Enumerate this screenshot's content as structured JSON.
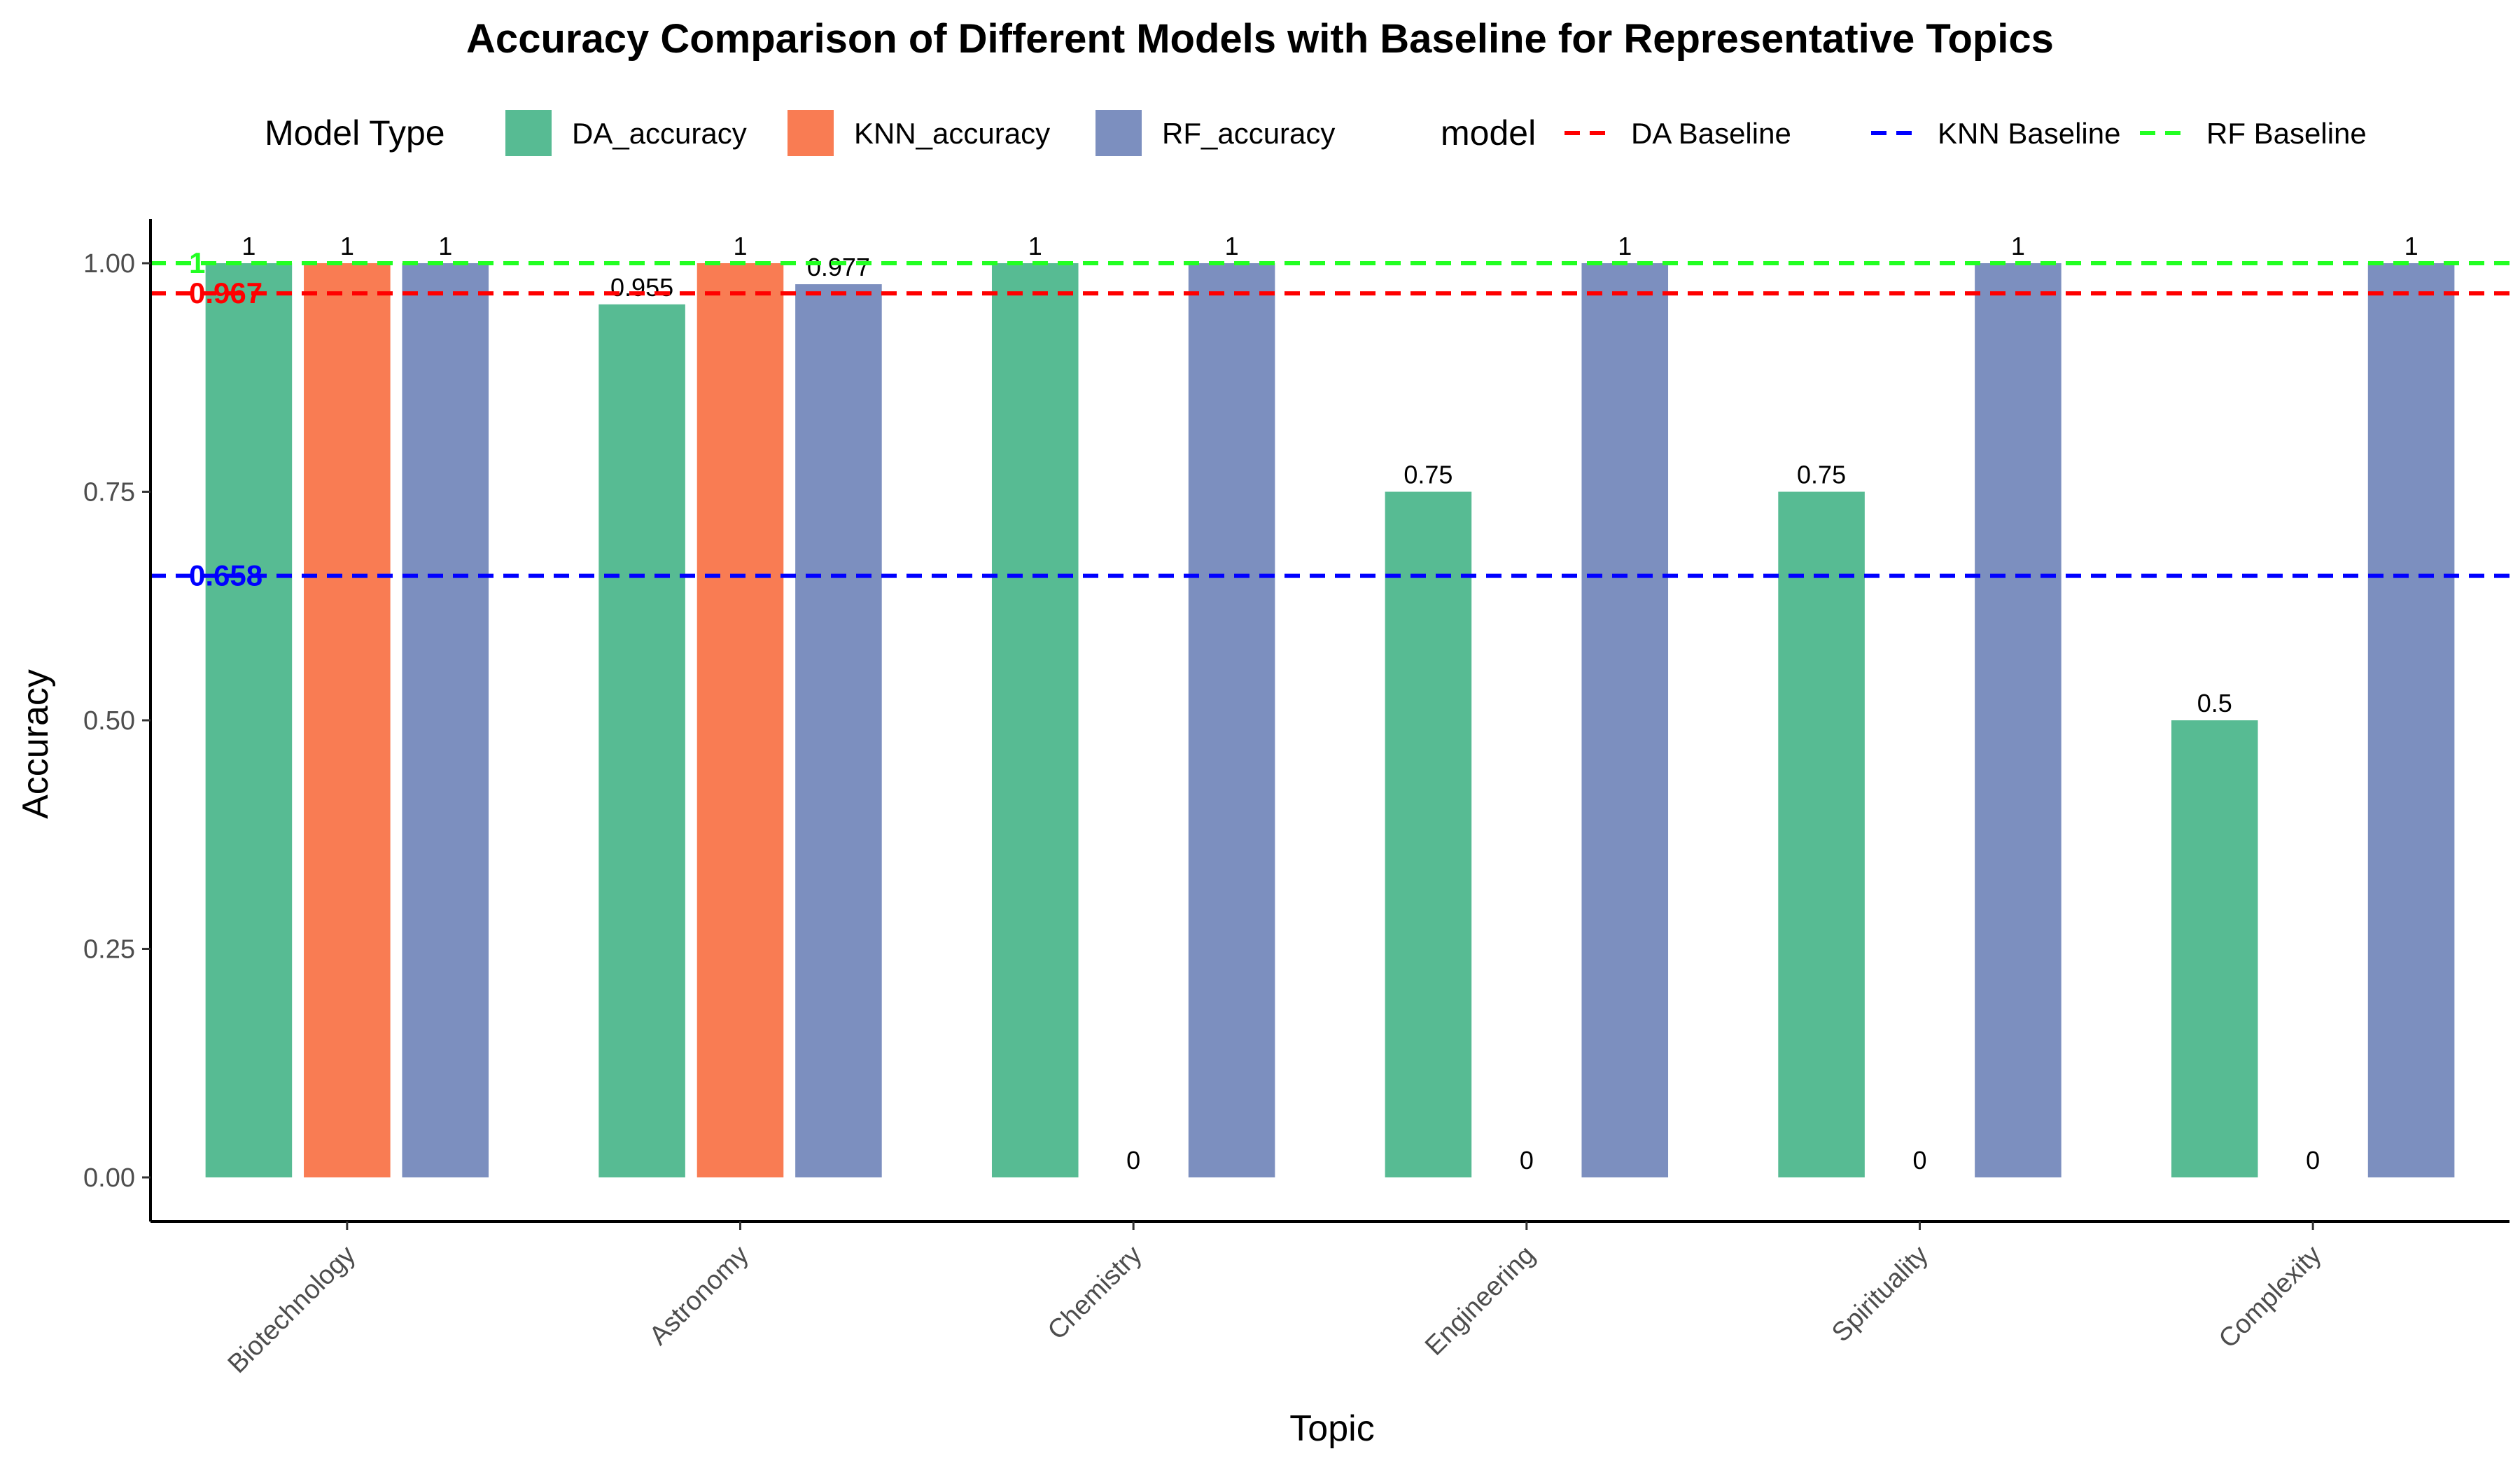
{
  "chart_data": {
    "type": "bar",
    "title": "Accuracy Comparison of Different Models with Baseline for Representative Topics",
    "xlabel": "Topic",
    "ylabel": "Accuracy",
    "ylim": [
      -0.05,
      1.05
    ],
    "yticks": [
      "0.00",
      "0.25",
      "0.50",
      "0.75",
      "1.00"
    ],
    "grid": false,
    "legend_position": "top",
    "categories": [
      "Biotechnology",
      "Astronomy",
      "Chemistry",
      "Engineering",
      "Spirituality",
      "Complexity"
    ],
    "fill_legend_title": "Model Type",
    "series": [
      {
        "name": "DA_accuracy",
        "color": "#57BB93",
        "values": [
          1,
          0.955,
          1,
          0.75,
          0.75,
          0.5
        ],
        "labels": [
          "1",
          "0.955",
          "1",
          "0.75",
          "0.75",
          "0.5"
        ]
      },
      {
        "name": "KNN_accuracy",
        "color": "#F97C53",
        "values": [
          1,
          1,
          0,
          0,
          0,
          0
        ],
        "labels": [
          "1",
          "1",
          "0",
          "0",
          "0",
          "0"
        ]
      },
      {
        "name": "RF_accuracy",
        "color": "#7C8FBF",
        "values": [
          1,
          0.977,
          1,
          1,
          1,
          1
        ],
        "labels": [
          "1",
          "0.977",
          "1",
          "1",
          "1",
          "1"
        ]
      }
    ],
    "baseline_legend_title": "model",
    "baselines": [
      {
        "name": "DA Baseline",
        "color": "#FF0000",
        "value": 0.967,
        "label": "0.967"
      },
      {
        "name": "KNN Baseline",
        "color": "#0000FF",
        "value": 0.658,
        "label": "0.658"
      },
      {
        "name": "RF Baseline",
        "color": "#22FF22",
        "value": 1,
        "label": "1"
      }
    ]
  }
}
